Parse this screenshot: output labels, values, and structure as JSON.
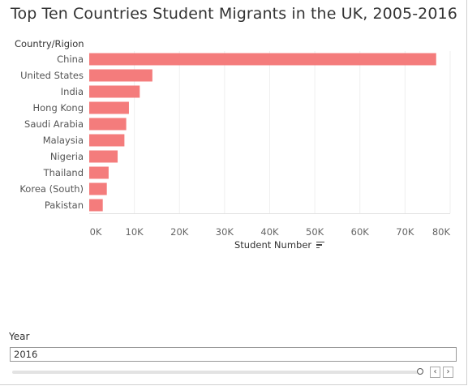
{
  "title": "Top Ten Countries Student Migrants in the UK, 2005-2016",
  "row_header": "Country/Rigion",
  "xlabel_text": "Student Number",
  "filter": {
    "label": "Year",
    "value": "2016"
  },
  "icons": {
    "sort": "sort-descending-icon",
    "prev": "chevron-left-icon",
    "next": "chevron-right-icon"
  },
  "bar_color": "#f47c7c",
  "chart_data": {
    "type": "bar",
    "orientation": "horizontal",
    "title": "Top Ten Countries Student Migrants in the UK, 2005-2016",
    "xlabel": "Student Number",
    "ylabel": "Country/Rigion",
    "categories": [
      "China",
      "United States",
      "India",
      "Hong Kong",
      "Saudi Arabia",
      "Malaysia",
      "Nigeria",
      "Thailand",
      "Korea (South)",
      "Pakistan"
    ],
    "values": [
      76900,
      14000,
      11200,
      8800,
      8200,
      7800,
      6300,
      4300,
      3900,
      3000
    ],
    "xlim": [
      0,
      80000
    ],
    "xticks": [
      0,
      10000,
      20000,
      30000,
      40000,
      50000,
      60000,
      70000,
      80000
    ],
    "xtick_labels": [
      "0K",
      "10K",
      "20K",
      "30K",
      "40K",
      "50K",
      "60K",
      "70K",
      "80K"
    ],
    "grid": true
  }
}
